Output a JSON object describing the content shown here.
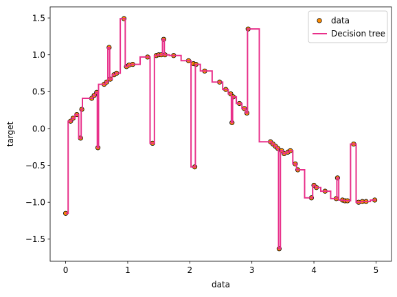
{
  "chart_data": {
    "type": "scatter",
    "title": "",
    "xlabel": "data",
    "ylabel": "target",
    "xlim": [
      -0.25,
      5.25
    ],
    "ylim": [
      -1.8,
      1.65
    ],
    "xticks": [
      0,
      1,
      2,
      3,
      4,
      5
    ],
    "xtick_labels": [
      "0",
      "1",
      "2",
      "3",
      "4",
      "5"
    ],
    "yticks": [
      -1.5,
      -1.0,
      -0.5,
      0.0,
      0.5,
      1.0,
      1.5
    ],
    "ytick_labels": [
      "−1.5",
      "−1.0",
      "−0.5",
      "0.0",
      "0.5",
      "1.0",
      "1.5"
    ],
    "grid": false,
    "legend_position": "top-right",
    "series": [
      {
        "name": "data",
        "kind": "scatter",
        "color": "#ff8c00",
        "edge_color": "#000000",
        "x": [
          0.0,
          0.08,
          0.12,
          0.18,
          0.24,
          0.26,
          0.42,
          0.46,
          0.5,
          0.52,
          0.62,
          0.66,
          0.7,
          0.72,
          0.78,
          0.82,
          0.94,
          0.98,
          1.02,
          1.08,
          1.32,
          1.4,
          1.46,
          1.5,
          1.54,
          1.58,
          1.6,
          1.74,
          1.98,
          2.06,
          2.08,
          2.1,
          2.24,
          2.48,
          2.58,
          2.66,
          2.68,
          2.7,
          2.8,
          2.88,
          2.92,
          2.94,
          3.3,
          3.34,
          3.38,
          3.42,
          3.44,
          3.48,
          3.52,
          3.58,
          3.62,
          3.7,
          3.74,
          3.96,
          4.0,
          4.04,
          4.18,
          4.36,
          4.38,
          4.46,
          4.5,
          4.54,
          4.64,
          4.72,
          4.78,
          4.84,
          4.98
        ],
        "y": [
          -1.15,
          0.1,
          0.14,
          0.19,
          -0.13,
          0.26,
          0.41,
          0.45,
          0.49,
          -0.26,
          0.6,
          0.63,
          1.1,
          0.67,
          0.73,
          0.75,
          1.49,
          0.84,
          0.86,
          0.87,
          0.97,
          -0.2,
          0.99,
          1.0,
          1.0,
          1.21,
          1.0,
          0.99,
          0.92,
          0.88,
          -0.52,
          0.87,
          0.78,
          0.63,
          0.53,
          0.47,
          0.08,
          0.43,
          0.34,
          0.27,
          0.21,
          1.35,
          -0.18,
          -0.21,
          -0.24,
          -0.27,
          -1.63,
          -0.3,
          -0.34,
          -0.32,
          -0.3,
          -0.48,
          -0.56,
          -0.94,
          -0.77,
          -0.8,
          -0.85,
          -0.95,
          -0.67,
          -0.97,
          -0.98,
          -0.98,
          -0.21,
          -1.0,
          -0.99,
          -0.99,
          -0.97
        ]
      },
      {
        "name": "Decision tree",
        "kind": "step",
        "color": "#e8308a",
        "x": [
          0.0,
          0.04,
          0.1,
          0.15,
          0.21,
          0.25,
          0.27,
          0.34,
          0.44,
          0.48,
          0.51,
          0.53,
          0.57,
          0.64,
          0.68,
          0.71,
          0.75,
          0.8,
          0.88,
          0.96,
          1.0,
          1.05,
          1.2,
          1.36,
          1.43,
          1.48,
          1.52,
          1.56,
          1.59,
          1.67,
          1.86,
          2.02,
          2.07,
          2.09,
          2.17,
          2.36,
          2.53,
          2.62,
          2.67,
          2.69,
          2.75,
          2.84,
          2.9,
          2.93,
          3.12,
          3.32,
          3.36,
          3.4,
          3.43,
          3.46,
          3.5,
          3.55,
          3.6,
          3.66,
          3.72,
          3.85,
          3.98,
          4.02,
          4.11,
          4.27,
          4.37,
          4.4,
          4.48,
          4.52,
          4.59,
          4.68,
          4.75,
          4.81,
          4.91,
          5.0
        ],
        "y": [
          -1.15,
          0.1,
          0.14,
          0.19,
          -0.13,
          0.26,
          0.41,
          0.41,
          0.45,
          0.49,
          -0.26,
          0.6,
          0.6,
          0.63,
          1.1,
          0.67,
          0.73,
          0.75,
          1.49,
          0.84,
          0.86,
          0.87,
          0.97,
          -0.2,
          0.99,
          1.0,
          1.0,
          1.21,
          1.0,
          0.99,
          0.92,
          -0.52,
          -0.52,
          0.87,
          0.78,
          0.63,
          0.53,
          0.47,
          0.08,
          0.43,
          0.34,
          0.27,
          0.21,
          1.35,
          -0.18,
          -0.21,
          -0.24,
          -0.27,
          -1.63,
          -0.3,
          -0.34,
          -0.32,
          -0.3,
          -0.48,
          -0.56,
          -0.94,
          -0.77,
          -0.8,
          -0.85,
          -0.95,
          -0.67,
          -0.97,
          -0.98,
          -0.98,
          -0.21,
          -1.0,
          -0.99,
          -0.99,
          -0.97,
          -0.97
        ]
      }
    ]
  }
}
